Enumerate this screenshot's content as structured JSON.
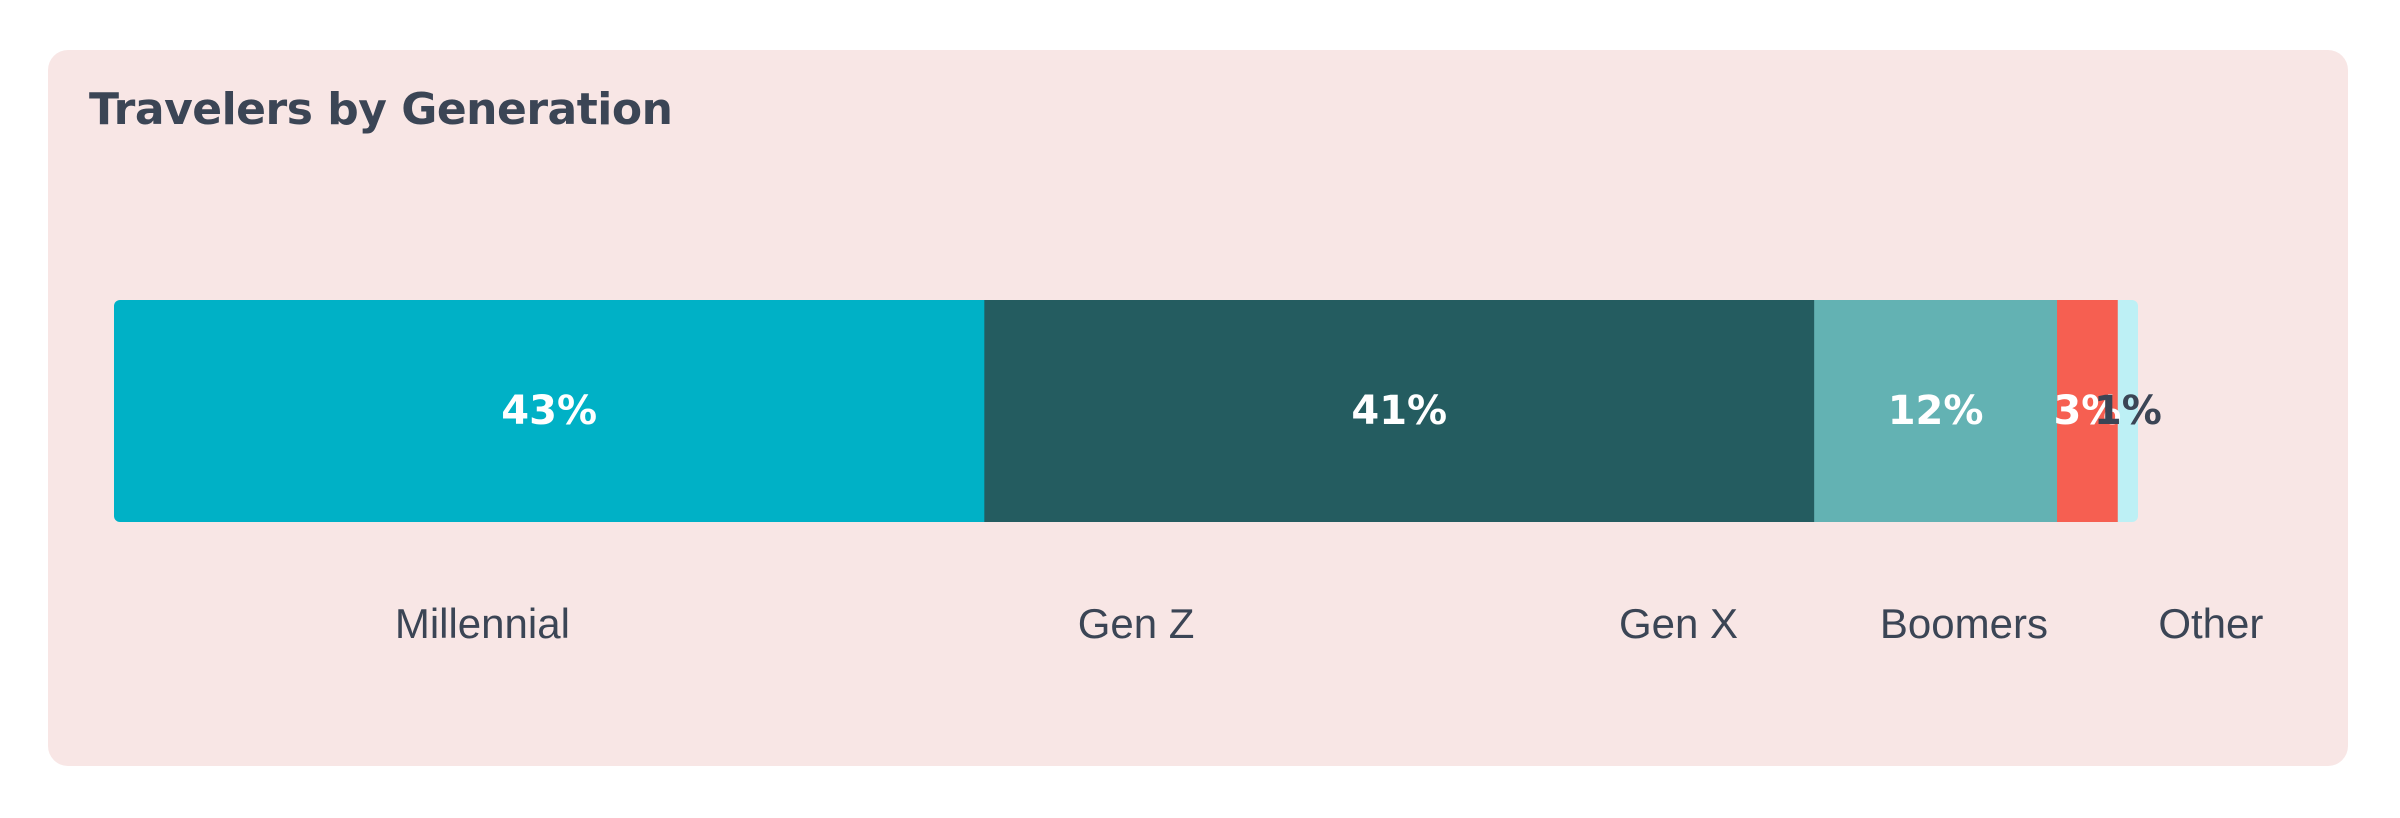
{
  "card": {
    "title": "Travelers by Generation"
  },
  "chart_data": {
    "type": "bar",
    "orientation": "horizontal-stacked-100",
    "title": "Travelers by Generation",
    "categories": [
      "Millennial",
      "Gen Z",
      "Gen X",
      "Boomers",
      "Other"
    ],
    "values": [
      43,
      41,
      12,
      3,
      1
    ],
    "value_labels": [
      "43%",
      "41%",
      "12%",
      "3%",
      "1%"
    ],
    "unit": "%",
    "colors": [
      "#00b1c6",
      "#245c60",
      "#63b2b3",
      "#f65f51",
      "#bdf0f5"
    ],
    "value_label_colors": [
      "#ffffff",
      "#ffffff",
      "#ffffff",
      "#ffffff",
      "#3b4555"
    ],
    "background": "#f8e6e5",
    "text_color": "#3b4555",
    "grid": false,
    "legend": "none"
  }
}
